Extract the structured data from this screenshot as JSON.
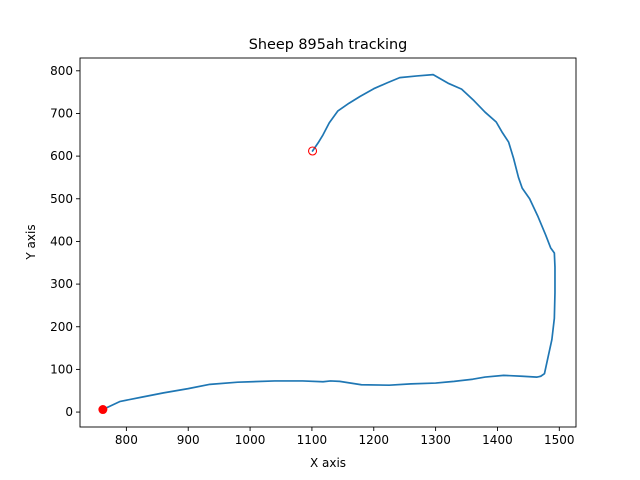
{
  "chart_data": {
    "type": "line",
    "title": "Sheep 895ah tracking",
    "xlabel": "X axis",
    "ylabel": "Y axis",
    "xlim": [
      725,
      1527
    ],
    "ylim": [
      -35,
      830
    ],
    "xticks": [
      800,
      900,
      1000,
      1100,
      1200,
      1300,
      1400,
      1500
    ],
    "yticks": [
      0,
      100,
      200,
      300,
      400,
      500,
      600,
      700,
      800
    ],
    "grid": false,
    "colors": {
      "line": "#1f77b4",
      "start_marker": "#ff0000",
      "end_marker": "#ff0000",
      "axes": "#000000",
      "background": "#ffffff"
    },
    "series": [
      {
        "x": [
          1101,
          1110,
          1118,
          1128,
          1142,
          1160,
          1178,
          1200,
          1222,
          1242,
          1270,
          1296,
          1320,
          1342,
          1362,
          1380,
          1398,
          1408,
          1418,
          1426,
          1434,
          1440,
          1452,
          1465,
          1478,
          1486,
          1492,
          1493,
          1493,
          1492,
          1488,
          1482,
          1476,
          1470,
          1467,
          1464,
          1440,
          1410,
          1380,
          1360,
          1330,
          1300,
          1260,
          1225,
          1180,
          1145,
          1130,
          1118,
          1085,
          1040,
          980,
          935,
          900,
          860,
          825,
          790,
          762
        ],
        "y": [
          612,
          631,
          650,
          678,
          706,
          724,
          740,
          758,
          772,
          784,
          788,
          791,
          771,
          757,
          730,
          703,
          680,
          655,
          633,
          595,
          550,
          525,
          500,
          460,
          415,
          385,
          373,
          340,
          280,
          220,
          170,
          130,
          90,
          84,
          83,
          82,
          84,
          86,
          82,
          77,
          72,
          68,
          66,
          63,
          64,
          72,
          73,
          71,
          73,
          73,
          70,
          65,
          55,
          45,
          35,
          25,
          6
        ]
      }
    ],
    "markers": [
      {
        "label": "start",
        "x": 1101,
        "y": 612,
        "style": "hollow-circle"
      },
      {
        "label": "end",
        "x": 762,
        "y": 6,
        "style": "filled-circle"
      }
    ]
  }
}
